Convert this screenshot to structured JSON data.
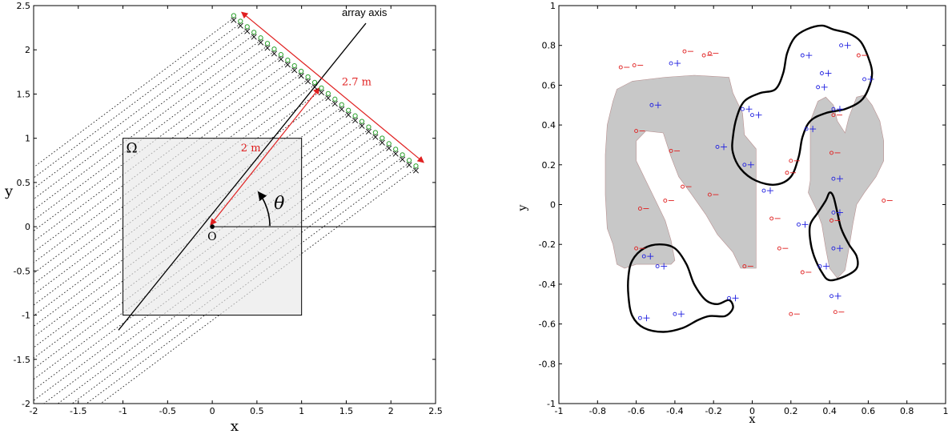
{
  "chart_data": [
    {
      "type": "scatter",
      "title": "",
      "xlabel": "x",
      "ylabel": "y",
      "xlim": [
        -2,
        2.5
      ],
      "ylim": [
        -2,
        2.5
      ],
      "xticks": [
        "-2",
        "-1.5",
        "-1",
        "-0.5",
        "0",
        "0.5",
        "1",
        "1.5",
        "2",
        "2.5"
      ],
      "yticks": [
        "-2",
        "-1.5",
        "-1",
        "-0.5",
        "0",
        "0.5",
        "1",
        "1.5",
        "2",
        "2.5"
      ],
      "grid": false,
      "region": {
        "label": "Ω",
        "x": [
          -1,
          1
        ],
        "y": [
          -1,
          1
        ],
        "color": "#e8e8e8"
      },
      "origin_label": "O",
      "array_axis": {
        "label": "array axis",
        "angle_deg": 37,
        "x": [
          -1.05,
          1.72
        ],
        "y": [
          -1.17,
          2.3
        ]
      },
      "theta_label": "θ",
      "distance_label": "2 m",
      "array_length_label": "2.7 m",
      "sensor_array": {
        "count": 28,
        "start": [
          0.24,
          2.36
        ],
        "end": [
          2.28,
          0.66
        ],
        "marker_color": "#2aa02a"
      },
      "colors": {
        "arrows": "#e02020",
        "sampling_dots": "#222222"
      }
    },
    {
      "type": "scatter",
      "title": "",
      "xlabel": "x",
      "ylabel": "y",
      "xlim": [
        -1,
        1
      ],
      "ylim": [
        -1,
        1
      ],
      "xticks": [
        "-1",
        "-0.8",
        "-0.6",
        "-0.4",
        "-0.2",
        "0",
        "0.2",
        "0.4",
        "0.6",
        "0.8",
        "1"
      ],
      "yticks": [
        "-1",
        "-0.8",
        "-0.6",
        "-0.4",
        "-0.2",
        "0",
        "0.2",
        "0.4",
        "0.6",
        "0.8",
        "1"
      ],
      "grid": false,
      "colors": {
        "shape_fill": "#c8c8c8",
        "contour": "#000000",
        "red_markers": "#e02020",
        "blue_markers": "#2020e0"
      },
      "shapes": [
        [
          [
            -0.72,
            0.52
          ],
          [
            -0.7,
            0.58
          ],
          [
            -0.62,
            0.62
          ],
          [
            -0.45,
            0.64
          ],
          [
            -0.3,
            0.65
          ],
          [
            -0.12,
            0.64
          ],
          [
            -0.1,
            0.56
          ],
          [
            -0.05,
            0.46
          ],
          [
            -0.04,
            0.35
          ],
          [
            0.02,
            0.28
          ],
          [
            0.02,
            -0.12
          ],
          [
            0.02,
            -0.32
          ],
          [
            -0.06,
            -0.32
          ],
          [
            -0.1,
            -0.24
          ],
          [
            -0.18,
            -0.15
          ],
          [
            -0.24,
            -0.05
          ],
          [
            -0.32,
            0.06
          ],
          [
            -0.38,
            0.14
          ],
          [
            -0.42,
            0.24
          ],
          [
            -0.46,
            0.36
          ],
          [
            -0.55,
            0.37
          ],
          [
            -0.6,
            0.32
          ],
          [
            -0.6,
            0.22
          ],
          [
            -0.55,
            0.12
          ],
          [
            -0.5,
            0.02
          ],
          [
            -0.45,
            -0.08
          ],
          [
            -0.42,
            -0.18
          ],
          [
            -0.4,
            -0.28
          ],
          [
            -0.42,
            -0.3
          ],
          [
            -0.6,
            -0.3
          ],
          [
            -0.66,
            -0.32
          ],
          [
            -0.7,
            -0.3
          ],
          [
            -0.72,
            -0.2
          ],
          [
            -0.75,
            -0.12
          ],
          [
            -0.76,
            0.05
          ],
          [
            -0.76,
            0.25
          ],
          [
            -0.75,
            0.4
          ]
        ],
        [
          [
            0.3,
            0.12
          ],
          [
            0.3,
            0.42
          ],
          [
            0.34,
            0.52
          ],
          [
            0.38,
            0.54
          ],
          [
            0.42,
            0.5
          ],
          [
            0.44,
            0.42
          ],
          [
            0.48,
            0.36
          ],
          [
            0.5,
            0.44
          ],
          [
            0.54,
            0.54
          ],
          [
            0.58,
            0.55
          ],
          [
            0.62,
            0.5
          ],
          [
            0.66,
            0.42
          ],
          [
            0.68,
            0.32
          ],
          [
            0.68,
            0.22
          ],
          [
            0.64,
            0.14
          ],
          [
            0.58,
            0.06
          ],
          [
            0.54,
            0.0
          ],
          [
            0.52,
            -0.1
          ],
          [
            0.5,
            -0.22
          ],
          [
            0.48,
            -0.33
          ],
          [
            0.44,
            -0.37
          ],
          [
            0.4,
            -0.32
          ],
          [
            0.38,
            -0.22
          ],
          [
            0.36,
            -0.1
          ],
          [
            0.33,
            -0.02
          ],
          [
            0.29,
            0.06
          ]
        ]
      ],
      "contours": [
        [
          [
            -0.1,
            0.34
          ],
          [
            -0.08,
            0.44
          ],
          [
            -0.04,
            0.52
          ],
          [
            0.04,
            0.56
          ],
          [
            0.12,
            0.58
          ],
          [
            0.16,
            0.66
          ],
          [
            0.18,
            0.76
          ],
          [
            0.22,
            0.84
          ],
          [
            0.28,
            0.88
          ],
          [
            0.36,
            0.9
          ],
          [
            0.42,
            0.88
          ],
          [
            0.5,
            0.86
          ],
          [
            0.56,
            0.82
          ],
          [
            0.6,
            0.74
          ],
          [
            0.62,
            0.66
          ],
          [
            0.6,
            0.58
          ],
          [
            0.56,
            0.52
          ],
          [
            0.48,
            0.48
          ],
          [
            0.38,
            0.46
          ],
          [
            0.3,
            0.42
          ],
          [
            0.26,
            0.34
          ],
          [
            0.24,
            0.24
          ],
          [
            0.2,
            0.14
          ],
          [
            0.12,
            0.1
          ],
          [
            0.02,
            0.12
          ],
          [
            -0.06,
            0.18
          ],
          [
            -0.1,
            0.26
          ]
        ],
        [
          [
            0.3,
            -0.1
          ],
          [
            0.34,
            -0.04
          ],
          [
            0.38,
            0.02
          ],
          [
            0.4,
            0.06
          ],
          [
            0.42,
            0.04
          ],
          [
            0.44,
            -0.04
          ],
          [
            0.46,
            -0.12
          ],
          [
            0.5,
            -0.2
          ],
          [
            0.54,
            -0.26
          ],
          [
            0.54,
            -0.32
          ],
          [
            0.48,
            -0.36
          ],
          [
            0.4,
            -0.38
          ],
          [
            0.36,
            -0.34
          ],
          [
            0.32,
            -0.26
          ],
          [
            0.3,
            -0.18
          ]
        ],
        [
          [
            -0.62,
            -0.28
          ],
          [
            -0.56,
            -0.22
          ],
          [
            -0.48,
            -0.2
          ],
          [
            -0.4,
            -0.22
          ],
          [
            -0.34,
            -0.3
          ],
          [
            -0.3,
            -0.4
          ],
          [
            -0.24,
            -0.48
          ],
          [
            -0.18,
            -0.5
          ],
          [
            -0.12,
            -0.48
          ],
          [
            -0.1,
            -0.52
          ],
          [
            -0.14,
            -0.56
          ],
          [
            -0.22,
            -0.56
          ],
          [
            -0.28,
            -0.58
          ],
          [
            -0.36,
            -0.62
          ],
          [
            -0.46,
            -0.64
          ],
          [
            -0.56,
            -0.62
          ],
          [
            -0.62,
            -0.56
          ],
          [
            -0.64,
            -0.46
          ],
          [
            -0.64,
            -0.36
          ]
        ]
      ],
      "red_points": [
        [
          -0.68,
          0.69
        ],
        [
          -0.61,
          0.7
        ],
        [
          -0.35,
          0.77
        ],
        [
          -0.25,
          0.75
        ],
        [
          -0.22,
          0.76
        ],
        [
          0.55,
          0.75
        ],
        [
          -0.6,
          0.37
        ],
        [
          -0.42,
          0.27
        ],
        [
          -0.58,
          -0.02
        ],
        [
          -0.45,
          0.02
        ],
        [
          -0.36,
          0.09
        ],
        [
          -0.22,
          0.05
        ],
        [
          0.2,
          0.22
        ],
        [
          0.18,
          0.16
        ],
        [
          0.41,
          0.26
        ],
        [
          0.68,
          0.02
        ],
        [
          0.1,
          -0.07
        ],
        [
          0.41,
          -0.08
        ],
        [
          -0.6,
          -0.22
        ],
        [
          -0.04,
          -0.31
        ],
        [
          0.14,
          -0.22
        ],
        [
          0.26,
          -0.34
        ],
        [
          0.42,
          0.45
        ],
        [
          0.2,
          -0.55
        ],
        [
          0.43,
          -0.54
        ]
      ],
      "blue_points": [
        [
          -0.42,
          0.71
        ],
        [
          0.46,
          0.8
        ],
        [
          0.26,
          0.75
        ],
        [
          0.36,
          0.66
        ],
        [
          0.34,
          0.59
        ],
        [
          0.58,
          0.63
        ],
        [
          -0.52,
          0.5
        ],
        [
          -0.05,
          0.48
        ],
        [
          0.0,
          0.45
        ],
        [
          0.42,
          0.48
        ],
        [
          -0.18,
          0.29
        ],
        [
          0.28,
          0.38
        ],
        [
          -0.04,
          0.2
        ],
        [
          0.42,
          0.13
        ],
        [
          0.06,
          0.07
        ],
        [
          0.42,
          -0.04
        ],
        [
          0.24,
          -0.1
        ],
        [
          -0.56,
          -0.26
        ],
        [
          -0.49,
          -0.31
        ],
        [
          0.42,
          -0.22
        ],
        [
          0.35,
          -0.31
        ],
        [
          0.41,
          -0.46
        ],
        [
          -0.12,
          -0.47
        ],
        [
          -0.58,
          -0.57
        ],
        [
          -0.4,
          -0.55
        ]
      ]
    }
  ]
}
